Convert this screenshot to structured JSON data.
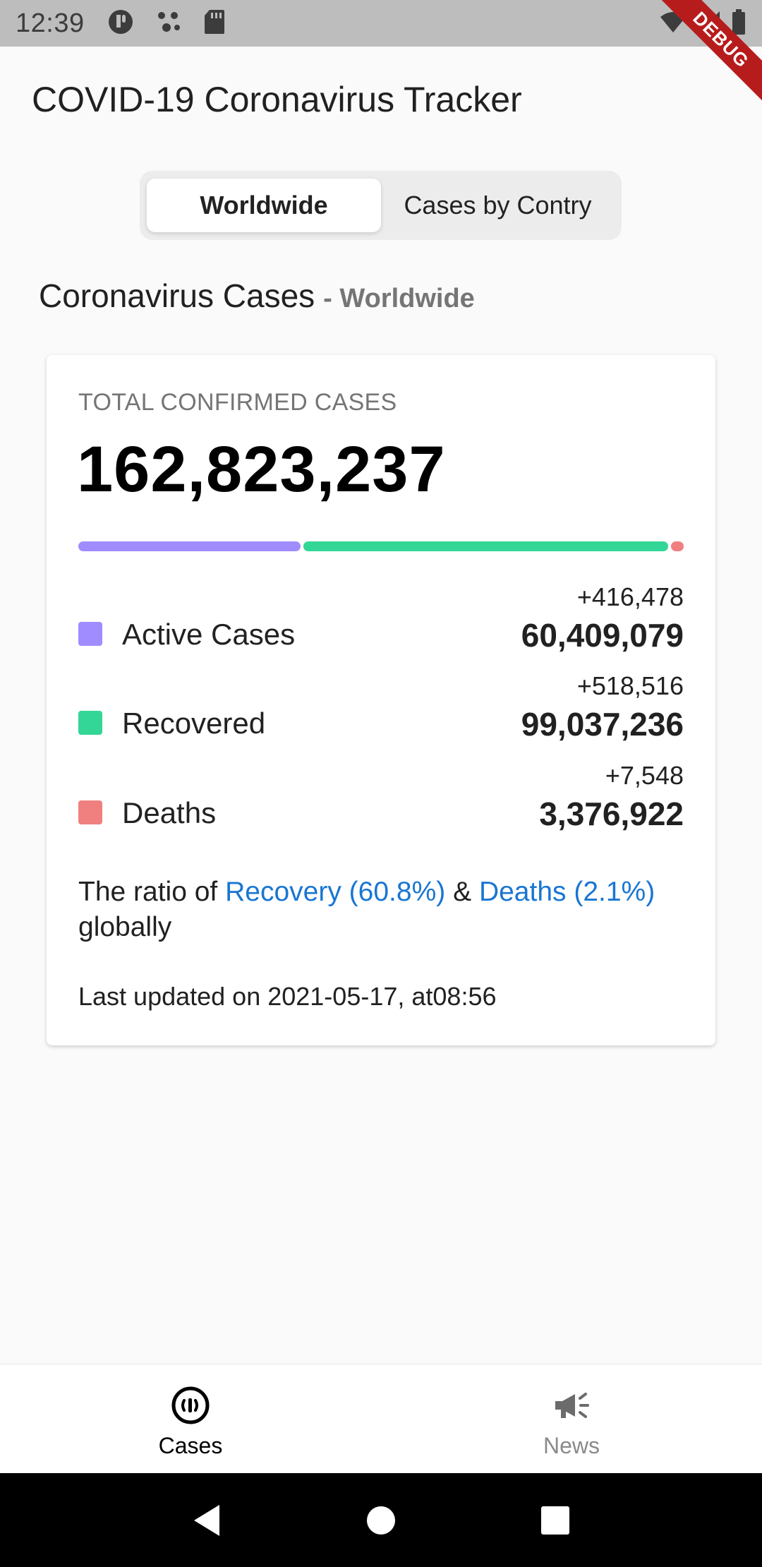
{
  "status_bar": {
    "time": "12:39"
  },
  "debug_label": "DEBUG",
  "app": {
    "title": "COVID-19 Coronavirus Tracker"
  },
  "tabs": [
    {
      "label": "Worldwide",
      "selected": true
    },
    {
      "label": "Cases by Contry",
      "selected": false
    }
  ],
  "section": {
    "title": "Coronavirus Cases",
    "subtitle": "- Worldwide"
  },
  "card": {
    "label": "TOTAL CONFIRMED CASES",
    "total": "162,823,237",
    "progress_fractions": {
      "active": 0.371,
      "recovered": 0.608,
      "deaths": 0.021
    },
    "stats": [
      {
        "name": "Active Cases",
        "delta": "+416,478",
        "value": "60,409,079",
        "color": "#a18cff"
      },
      {
        "name": "Recovered",
        "delta": "+518,516",
        "value": "99,037,236",
        "color": "#33d696"
      },
      {
        "name": "Deaths",
        "delta": "+7,548",
        "value": "3,376,922",
        "color": "#f08080"
      }
    ],
    "ratio": {
      "prefix": "The ratio of",
      "recovery": "Recovery (60.8%)",
      "amp": "&",
      "deaths": "Deaths (2.1%)",
      "suffix": "globally"
    },
    "updated": "Last updated on 2021-05-17, at08:56"
  },
  "bottom_nav": [
    {
      "label": "Cases",
      "icon": "cases-icon",
      "active": true
    },
    {
      "label": "News",
      "icon": "megaphone-icon",
      "active": false
    }
  ],
  "colors": {
    "accent_link": "#1976d2",
    "debug": "#b71c1c"
  }
}
